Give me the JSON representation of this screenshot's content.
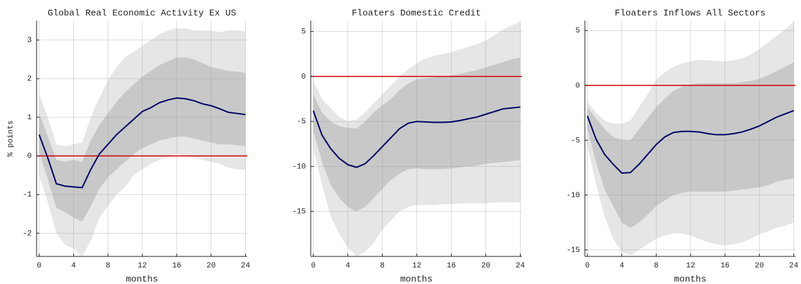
{
  "chart_data": [
    {
      "type": "line",
      "title": "Global Real Economic Activity Ex US",
      "xlabel": "months",
      "ylabel": "% points",
      "x": [
        0,
        1,
        2,
        3,
        4,
        5,
        6,
        7,
        8,
        9,
        10,
        11,
        12,
        13,
        14,
        15,
        16,
        17,
        18,
        19,
        20,
        21,
        22,
        23,
        24
      ],
      "xlim": [
        -0.3,
        24.2
      ],
      "xticks": [
        0,
        4,
        8,
        12,
        16,
        20,
        24
      ],
      "ylim": [
        -2.6,
        3.5
      ],
      "yticks": [
        -2,
        -1,
        0,
        1,
        2,
        3
      ],
      "grid": true,
      "hline": {
        "value": 0,
        "color": "#d40000"
      },
      "bands": [
        {
          "color": "#e6e6e6",
          "lower": [
            -0.5,
            -1.2,
            -2.0,
            -2.3,
            -2.4,
            -2.6,
            -2.2,
            -1.6,
            -1.3,
            -1.0,
            -0.8,
            -0.5,
            -0.35,
            -0.2,
            -0.1,
            0,
            0.05,
            0,
            -0.05,
            -0.1,
            -0.15,
            -0.2,
            -0.3,
            -0.35,
            -0.35
          ],
          "upper": [
            1.6,
            1.0,
            0.3,
            0.25,
            0.3,
            0.35,
            1.0,
            1.5,
            1.95,
            2.3,
            2.55,
            2.7,
            2.85,
            3.0,
            3.15,
            3.25,
            3.3,
            3.3,
            3.25,
            3.25,
            3.25,
            3.2,
            3.25,
            3.25,
            3.22
          ]
        },
        {
          "color": "#c8c8c8",
          "lower": [
            0.1,
            -0.6,
            -1.35,
            -1.45,
            -1.6,
            -1.7,
            -1.3,
            -0.85,
            -0.55,
            -0.35,
            -0.15,
            0.05,
            0.2,
            0.3,
            0.4,
            0.45,
            0.5,
            0.5,
            0.45,
            0.4,
            0.35,
            0.3,
            0.3,
            0.28,
            0.25
          ],
          "upper": [
            1.1,
            0.5,
            -0.1,
            -0.15,
            -0.1,
            -0.15,
            0.4,
            0.8,
            1.1,
            1.4,
            1.65,
            1.85,
            2.05,
            2.2,
            2.35,
            2.45,
            2.55,
            2.55,
            2.5,
            2.4,
            2.3,
            2.25,
            2.2,
            2.18,
            2.15
          ]
        }
      ],
      "series": [
        {
          "color": "#000066",
          "values": [
            0.55,
            -0.05,
            -0.72,
            -0.78,
            -0.8,
            -0.82,
            -0.35,
            0.05,
            0.3,
            0.55,
            0.75,
            0.95,
            1.15,
            1.25,
            1.38,
            1.45,
            1.5,
            1.48,
            1.43,
            1.35,
            1.3,
            1.22,
            1.13,
            1.1,
            1.07
          ]
        }
      ]
    },
    {
      "type": "line",
      "title": "Floaters Domestic Credit",
      "xlabel": "months",
      "x": [
        0,
        1,
        2,
        3,
        4,
        5,
        6,
        7,
        8,
        9,
        10,
        11,
        12,
        13,
        14,
        15,
        16,
        17,
        18,
        19,
        20,
        21,
        22,
        23,
        24
      ],
      "xlim": [
        -0.3,
        24.2
      ],
      "xticks": [
        0,
        4,
        8,
        12,
        16,
        20,
        24
      ],
      "ylim": [
        -20,
        6.2
      ],
      "yticks": [
        -15,
        -10,
        -5,
        0,
        5
      ],
      "grid": true,
      "hline": {
        "value": 0,
        "color": "#d40000"
      },
      "bands": [
        {
          "color": "#e6e6e6",
          "lower": [
            -8,
            -12,
            -15.5,
            -17.5,
            -19,
            -20,
            -19.5,
            -18.5,
            -17,
            -16,
            -15,
            -14.5,
            -14.3,
            -14.3,
            -14.3,
            -14.2,
            -14.2,
            -14.1,
            -14.1,
            -14.1,
            -14.1,
            -14,
            -14,
            -14,
            -14
          ],
          "upper": [
            -0.5,
            -2.5,
            -3.5,
            -4.5,
            -5,
            -4.8,
            -4,
            -3,
            -2,
            -1,
            0,
            0.8,
            1.5,
            2,
            2.3,
            2.5,
            2.7,
            3,
            3.3,
            3.6,
            4,
            4.6,
            5.2,
            5.7,
            6.1
          ]
        },
        {
          "color": "#c8c8c8",
          "lower": [
            -6,
            -9.5,
            -12,
            -13.5,
            -14.5,
            -15,
            -14.5,
            -13.5,
            -12.5,
            -11.5,
            -10.8,
            -10.3,
            -10.2,
            -10.3,
            -10.3,
            -10.3,
            -10.2,
            -10.1,
            -10,
            -9.9,
            -9.7,
            -9.6,
            -9.5,
            -9.4,
            -9.3
          ],
          "upper": [
            -2,
            -4,
            -5,
            -5.5,
            -5.7,
            -5.8,
            -5,
            -4,
            -3.2,
            -2.5,
            -1.5,
            -0.8,
            -0.3,
            -0.2,
            -0.1,
            0,
            0.1,
            0.3,
            0.5,
            0.7,
            1,
            1.3,
            1.6,
            1.9,
            2.1
          ]
        }
      ],
      "series": [
        {
          "color": "#000066",
          "values": [
            -3.8,
            -6.5,
            -8,
            -9.1,
            -9.8,
            -10.1,
            -9.7,
            -8.8,
            -7.8,
            -6.8,
            -5.8,
            -5.2,
            -5,
            -5.05,
            -5.1,
            -5.1,
            -5.05,
            -4.9,
            -4.7,
            -4.5,
            -4.2,
            -3.9,
            -3.6,
            -3.5,
            -3.4
          ]
        }
      ]
    },
    {
      "type": "line",
      "title": "Floaters Inflows All Sectors",
      "xlabel": "months",
      "x": [
        0,
        1,
        2,
        3,
        4,
        5,
        6,
        7,
        8,
        9,
        10,
        11,
        12,
        13,
        14,
        15,
        16,
        17,
        18,
        19,
        20,
        21,
        22,
        23,
        24
      ],
      "xlim": [
        -0.3,
        24.2
      ],
      "xticks": [
        0,
        4,
        8,
        12,
        16,
        20,
        24
      ],
      "ylim": [
        -15.6,
        5.9
      ],
      "yticks": [
        -15,
        -10,
        -5,
        0,
        5
      ],
      "grid": true,
      "hline": {
        "value": 0,
        "color": "#d40000"
      },
      "bands": [
        {
          "color": "#e6e6e6",
          "lower": [
            -5.5,
            -9,
            -12,
            -14,
            -15.2,
            -15.5,
            -15,
            -14.5,
            -14,
            -13.7,
            -13.5,
            -13.5,
            -13.7,
            -14,
            -14.3,
            -14.5,
            -14.6,
            -14.5,
            -14.3,
            -14,
            -13.6,
            -13.3,
            -13,
            -12.8,
            -12.5
          ],
          "upper": [
            -1.5,
            -2.5,
            -3.2,
            -3.5,
            -3.5,
            -3.2,
            -2,
            -0.8,
            0.5,
            1.2,
            1.7,
            2,
            2.2,
            2.3,
            2.3,
            2.2,
            2.2,
            2.3,
            2.5,
            2.8,
            3.3,
            3.9,
            4.5,
            5.1,
            5.8
          ]
        },
        {
          "color": "#c8c8c8",
          "lower": [
            -4,
            -7,
            -9.5,
            -11,
            -12.5,
            -13,
            -12.5,
            -11.8,
            -11,
            -10.5,
            -10,
            -9.8,
            -9.7,
            -9.7,
            -9.7,
            -9.7,
            -9.7,
            -9.6,
            -9.5,
            -9.4,
            -9.3,
            -9.1,
            -8.8,
            -8.6,
            -8.5
          ],
          "upper": [
            -2,
            -3,
            -4,
            -4.7,
            -5,
            -5,
            -4,
            -3,
            -2,
            -1.2,
            -0.5,
            -0.1,
            0.1,
            0.2,
            0.2,
            0.2,
            0.2,
            0.2,
            0.3,
            0.4,
            0.6,
            0.9,
            1.3,
            1.7,
            2.1
          ]
        }
      ],
      "series": [
        {
          "color": "#000066",
          "values": [
            -2.8,
            -4.9,
            -6.3,
            -7.2,
            -8,
            -7.95,
            -7.2,
            -6.3,
            -5.4,
            -4.7,
            -4.3,
            -4.2,
            -4.2,
            -4.25,
            -4.4,
            -4.5,
            -4.5,
            -4.4,
            -4.25,
            -4,
            -3.7,
            -3.3,
            -2.9,
            -2.6,
            -2.3
          ]
        }
      ]
    }
  ]
}
